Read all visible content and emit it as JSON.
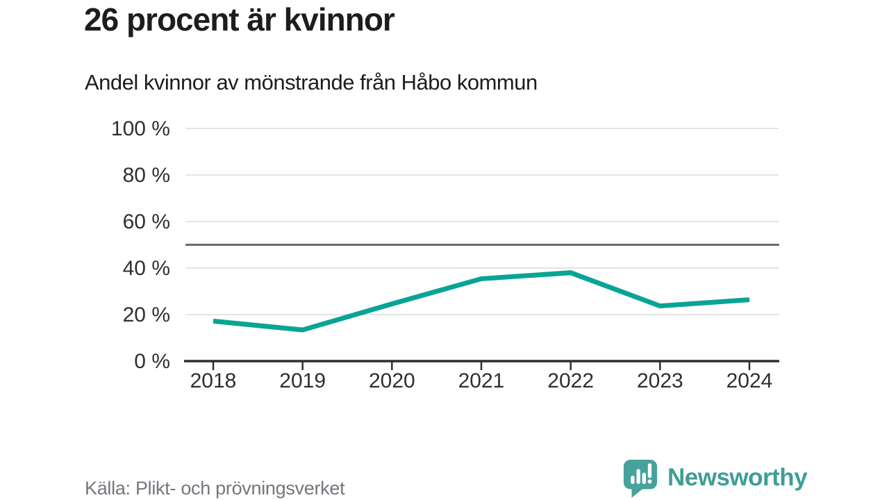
{
  "header": {
    "title": "26 procent är kvinnor",
    "subtitle": "Andel kvinnor av mönstrande från Håbo kommun"
  },
  "footer": {
    "source": "Källa: Plikt- och prövningsverket",
    "brand": "Newsworthy"
  },
  "colors": {
    "line": "#08a496",
    "grid": "#e4e4e4",
    "reference_line": "#6b6b72",
    "axis": "#2f2f2f",
    "tick_text": "#2f2f2f",
    "muted_text": "#75757d",
    "brand_teal": "#3f9d97",
    "logo_bubble": "#46a29b"
  },
  "chart_data": {
    "type": "line",
    "x": [
      "2018",
      "2019",
      "2020",
      "2021",
      "2022",
      "2023",
      "2024"
    ],
    "series": [
      {
        "name": "Andel kvinnor av mönstrande",
        "values": [
          17.2,
          13.4,
          24.6,
          35.4,
          38.0,
          23.7,
          26.4
        ]
      }
    ],
    "title": "26 procent är kvinnor",
    "subtitle": "Andel kvinnor av mönstrande från Håbo kommun",
    "xlabel": "",
    "ylabel": "",
    "ylim": [
      0,
      100
    ],
    "yticks": [
      0,
      20,
      40,
      60,
      80,
      100
    ],
    "ytick_suffix": " %",
    "reference_line": 50,
    "grid": true,
    "legend": "none",
    "source": "Källa: Plikt- och prövningsverket"
  }
}
